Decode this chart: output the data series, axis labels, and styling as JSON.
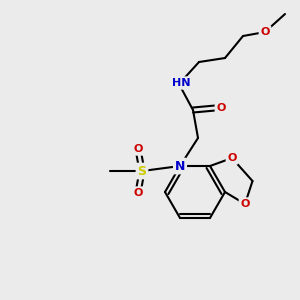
{
  "bg_color": "#ebebeb",
  "atom_colors": {
    "C": "#000000",
    "N": "#0000cc",
    "O": "#cc0000",
    "S": "#cccc00",
    "H": "#607060"
  },
  "bond_color": "#000000",
  "bond_width": 1.5,
  "figsize": [
    3.0,
    3.0
  ],
  "dpi": 100
}
